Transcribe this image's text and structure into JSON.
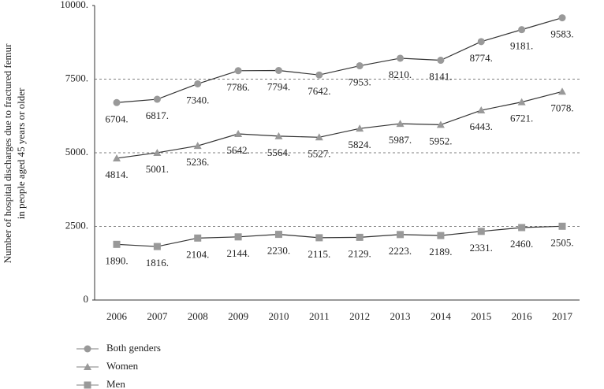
{
  "chart_data": {
    "type": "line",
    "ylabel": [
      "Number of hospital discharges due to fractured femur",
      "in people aged 45 years or older"
    ],
    "categories": [
      "2006",
      "2007",
      "2008",
      "2009",
      "2010",
      "2011",
      "2012",
      "2013",
      "2014",
      "2015",
      "2016",
      "2017"
    ],
    "line_color": "#333333",
    "grid": true,
    "ylim": [
      0,
      10000
    ],
    "yticks": [
      0,
      {
        "value": 2500,
        "label": "2500."
      },
      {
        "value": 5000,
        "label": "5000."
      },
      {
        "value": 7500,
        "label": "7500."
      },
      {
        "value": 10000,
        "label": "10000."
      }
    ],
    "series": [
      {
        "name": "Both genders",
        "color": "#999999",
        "marker": "circle",
        "values": [
          6704,
          6817,
          7340,
          7786,
          7794,
          7642,
          7953,
          8210,
          8141,
          8774,
          9181,
          9583
        ],
        "value_labels": [
          "6704.",
          "6817.",
          "7340.",
          "7786.",
          "7794.",
          "7642.",
          "7953.",
          "8210.",
          "8141.",
          "8774.",
          "9181.",
          "9583."
        ]
      },
      {
        "name": "Women",
        "color": "#999999",
        "marker": "triangle",
        "values": [
          4814,
          5001,
          5236,
          5642,
          5564,
          5527,
          5824,
          5987,
          5952,
          6443,
          6721,
          7078
        ],
        "value_labels": [
          "4814.",
          "5001.",
          "5236.",
          "5642.",
          "5564.",
          "5527.",
          "5824.",
          "5987.",
          "5952.",
          "6443.",
          "6721.",
          "7078."
        ]
      },
      {
        "name": "Men",
        "color": "#999999",
        "marker": "square",
        "values": [
          1890,
          1816,
          2104,
          2144,
          2230,
          2115,
          2129,
          2223,
          2189,
          2331,
          2460,
          2505
        ],
        "value_labels": [
          "1890.",
          "1816.",
          "2104.",
          "2144.",
          "2230.",
          "2115.",
          "2129.",
          "2223.",
          "2189.",
          "2331.",
          "2460.",
          "2505."
        ]
      }
    ]
  }
}
